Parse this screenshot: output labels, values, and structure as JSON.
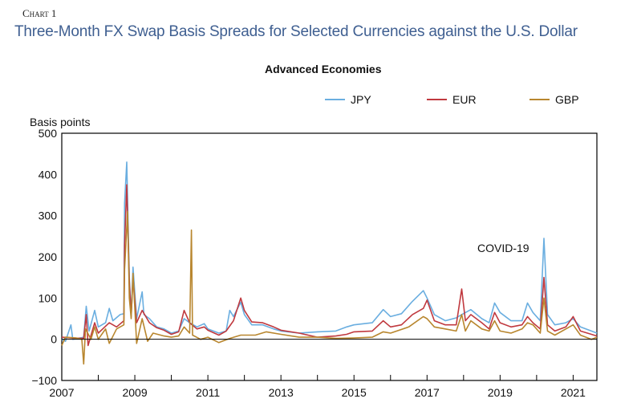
{
  "chart_label": "Chart 1",
  "chart_data": {
    "type": "line",
    "title": "Three-Month FX Swap Basis Spreads for Selected Currencies against the U.S. Dollar",
    "subtitle": "Advanced Economies",
    "ylabel": "Basis points",
    "xlabel": "",
    "ylim": [
      -100,
      500
    ],
    "xlim": [
      2007,
      2021.65
    ],
    "yticks": [
      "500",
      "400",
      "300",
      "200",
      "100",
      "0",
      "−100"
    ],
    "xticks": [
      "2007",
      "2009",
      "2011",
      "2013",
      "2015",
      "2017",
      "2019",
      "2021"
    ],
    "legend_position": "top-right",
    "annotation": "COVID-19",
    "grid": false,
    "series": [
      {
        "name": "JPY",
        "color": "#6aaee0",
        "points": [
          [
            2007.0,
            0
          ],
          [
            2007.1,
            -5
          ],
          [
            2007.25,
            35
          ],
          [
            2007.3,
            0
          ],
          [
            2007.6,
            5
          ],
          [
            2007.67,
            80
          ],
          [
            2007.75,
            20
          ],
          [
            2007.9,
            70
          ],
          [
            2008.0,
            30
          ],
          [
            2008.2,
            40
          ],
          [
            2008.3,
            75
          ],
          [
            2008.4,
            45
          ],
          [
            2008.6,
            60
          ],
          [
            2008.7,
            62
          ],
          [
            2008.72,
            330
          ],
          [
            2008.78,
            430
          ],
          [
            2008.85,
            150
          ],
          [
            2008.9,
            60
          ],
          [
            2008.95,
            175
          ],
          [
            2009.05,
            50
          ],
          [
            2009.2,
            115
          ],
          [
            2009.25,
            60
          ],
          [
            2009.4,
            50
          ],
          [
            2009.6,
            30
          ],
          [
            2009.8,
            25
          ],
          [
            2010.0,
            15
          ],
          [
            2010.2,
            20
          ],
          [
            2010.35,
            50
          ],
          [
            2010.5,
            40
          ],
          [
            2010.7,
            30
          ],
          [
            2010.9,
            38
          ],
          [
            2011.0,
            25
          ],
          [
            2011.3,
            15
          ],
          [
            2011.5,
            20
          ],
          [
            2011.6,
            70
          ],
          [
            2011.7,
            55
          ],
          [
            2011.9,
            90
          ],
          [
            2012.0,
            60
          ],
          [
            2012.2,
            35
          ],
          [
            2012.5,
            35
          ],
          [
            2012.8,
            25
          ],
          [
            2013.0,
            20
          ],
          [
            2013.5,
            15
          ],
          [
            2014.0,
            18
          ],
          [
            2014.5,
            20
          ],
          [
            2014.8,
            30
          ],
          [
            2015.0,
            35
          ],
          [
            2015.5,
            40
          ],
          [
            2015.8,
            72
          ],
          [
            2016.0,
            55
          ],
          [
            2016.3,
            62
          ],
          [
            2016.6,
            92
          ],
          [
            2016.9,
            118
          ],
          [
            2017.0,
            100
          ],
          [
            2017.2,
            60
          ],
          [
            2017.5,
            45
          ],
          [
            2017.8,
            52
          ],
          [
            2017.95,
            60
          ],
          [
            2018.2,
            72
          ],
          [
            2018.5,
            50
          ],
          [
            2018.7,
            40
          ],
          [
            2018.85,
            88
          ],
          [
            2019.0,
            65
          ],
          [
            2019.3,
            45
          ],
          [
            2019.6,
            45
          ],
          [
            2019.75,
            88
          ],
          [
            2019.9,
            65
          ],
          [
            2020.1,
            45
          ],
          [
            2020.2,
            245
          ],
          [
            2020.3,
            60
          ],
          [
            2020.5,
            35
          ],
          [
            2020.8,
            40
          ],
          [
            2021.0,
            50
          ],
          [
            2021.2,
            30
          ],
          [
            2021.5,
            20
          ],
          [
            2021.65,
            15
          ]
        ]
      },
      {
        "name": "EUR",
        "color": "#c0393f",
        "points": [
          [
            2007.0,
            5
          ],
          [
            2007.3,
            3
          ],
          [
            2007.6,
            2
          ],
          [
            2007.67,
            60
          ],
          [
            2007.72,
            -15
          ],
          [
            2007.9,
            40
          ],
          [
            2008.0,
            15
          ],
          [
            2008.3,
            40
          ],
          [
            2008.5,
            30
          ],
          [
            2008.7,
            45
          ],
          [
            2008.72,
            230
          ],
          [
            2008.78,
            375
          ],
          [
            2008.85,
            140
          ],
          [
            2008.9,
            55
          ],
          [
            2008.95,
            150
          ],
          [
            2009.05,
            40
          ],
          [
            2009.2,
            70
          ],
          [
            2009.4,
            40
          ],
          [
            2009.6,
            28
          ],
          [
            2009.8,
            22
          ],
          [
            2010.0,
            12
          ],
          [
            2010.2,
            18
          ],
          [
            2010.35,
            70
          ],
          [
            2010.5,
            40
          ],
          [
            2010.7,
            25
          ],
          [
            2010.9,
            30
          ],
          [
            2011.0,
            22
          ],
          [
            2011.3,
            10
          ],
          [
            2011.5,
            20
          ],
          [
            2011.7,
            45
          ],
          [
            2011.9,
            100
          ],
          [
            2012.0,
            70
          ],
          [
            2012.2,
            42
          ],
          [
            2012.5,
            40
          ],
          [
            2012.8,
            30
          ],
          [
            2013.0,
            22
          ],
          [
            2013.5,
            15
          ],
          [
            2014.0,
            5
          ],
          [
            2014.5,
            8
          ],
          [
            2014.8,
            12
          ],
          [
            2015.0,
            18
          ],
          [
            2015.5,
            20
          ],
          [
            2015.8,
            45
          ],
          [
            2016.0,
            30
          ],
          [
            2016.3,
            35
          ],
          [
            2016.6,
            60
          ],
          [
            2016.9,
            75
          ],
          [
            2017.0,
            95
          ],
          [
            2017.2,
            45
          ],
          [
            2017.5,
            35
          ],
          [
            2017.8,
            35
          ],
          [
            2017.95,
            122
          ],
          [
            2018.05,
            45
          ],
          [
            2018.2,
            60
          ],
          [
            2018.5,
            40
          ],
          [
            2018.7,
            25
          ],
          [
            2018.85,
            65
          ],
          [
            2019.0,
            40
          ],
          [
            2019.3,
            30
          ],
          [
            2019.6,
            35
          ],
          [
            2019.75,
            55
          ],
          [
            2019.9,
            40
          ],
          [
            2020.1,
            25
          ],
          [
            2020.2,
            150
          ],
          [
            2020.3,
            35
          ],
          [
            2020.5,
            20
          ],
          [
            2020.8,
            30
          ],
          [
            2021.0,
            55
          ],
          [
            2021.2,
            20
          ],
          [
            2021.5,
            12
          ],
          [
            2021.65,
            8
          ]
        ]
      },
      {
        "name": "GBP",
        "color": "#b8862e",
        "points": [
          [
            2007.0,
            -15
          ],
          [
            2007.1,
            5
          ],
          [
            2007.4,
            3
          ],
          [
            2007.55,
            0
          ],
          [
            2007.6,
            -60
          ],
          [
            2007.65,
            25
          ],
          [
            2007.8,
            0
          ],
          [
            2007.9,
            30
          ],
          [
            2008.0,
            0
          ],
          [
            2008.2,
            25
          ],
          [
            2008.3,
            -10
          ],
          [
            2008.5,
            25
          ],
          [
            2008.7,
            35
          ],
          [
            2008.72,
            170
          ],
          [
            2008.8,
            310
          ],
          [
            2008.85,
            100
          ],
          [
            2008.9,
            50
          ],
          [
            2008.95,
            160
          ],
          [
            2009.05,
            -10
          ],
          [
            2009.2,
            50
          ],
          [
            2009.35,
            -5
          ],
          [
            2009.5,
            15
          ],
          [
            2009.8,
            8
          ],
          [
            2010.0,
            5
          ],
          [
            2010.2,
            8
          ],
          [
            2010.35,
            30
          ],
          [
            2010.5,
            15
          ],
          [
            2010.55,
            265
          ],
          [
            2010.58,
            10
          ],
          [
            2010.8,
            0
          ],
          [
            2011.0,
            5
          ],
          [
            2011.3,
            -8
          ],
          [
            2011.6,
            2
          ],
          [
            2011.9,
            10
          ],
          [
            2012.3,
            10
          ],
          [
            2012.6,
            18
          ],
          [
            2013.0,
            12
          ],
          [
            2013.5,
            5
          ],
          [
            2014.0,
            5
          ],
          [
            2014.5,
            2
          ],
          [
            2015.0,
            3
          ],
          [
            2015.5,
            5
          ],
          [
            2015.8,
            18
          ],
          [
            2016.0,
            15
          ],
          [
            2016.5,
            30
          ],
          [
            2016.9,
            55
          ],
          [
            2017.0,
            50
          ],
          [
            2017.2,
            30
          ],
          [
            2017.5,
            25
          ],
          [
            2017.8,
            20
          ],
          [
            2017.95,
            60
          ],
          [
            2018.05,
            20
          ],
          [
            2018.2,
            45
          ],
          [
            2018.5,
            25
          ],
          [
            2018.7,
            20
          ],
          [
            2018.85,
            45
          ],
          [
            2019.0,
            20
          ],
          [
            2019.3,
            15
          ],
          [
            2019.6,
            25
          ],
          [
            2019.75,
            40
          ],
          [
            2019.9,
            35
          ],
          [
            2020.1,
            15
          ],
          [
            2020.2,
            100
          ],
          [
            2020.3,
            20
          ],
          [
            2020.5,
            10
          ],
          [
            2020.8,
            25
          ],
          [
            2021.0,
            35
          ],
          [
            2021.2,
            10
          ],
          [
            2021.5,
            0
          ],
          [
            2021.65,
            5
          ]
        ]
      }
    ]
  }
}
